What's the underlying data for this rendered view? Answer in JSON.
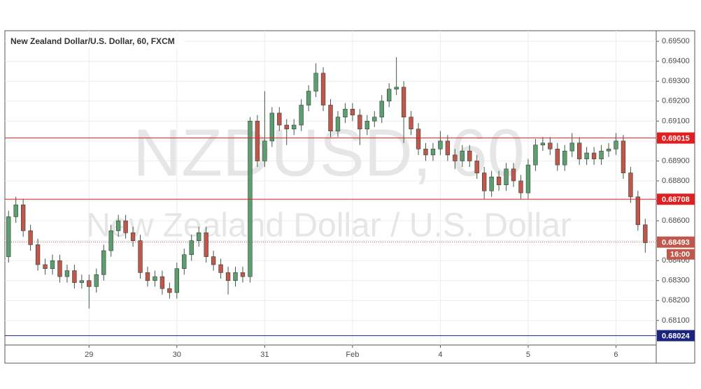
{
  "chart_data": {
    "type": "candlestick",
    "title": "New Zealand Dollar/U.S. Dollar, 60, FXCM",
    "watermark": "NZDUSD, 60",
    "watermark_subtitle": "New Zealand Dollar / U.S. Dollar",
    "x": [
      0,
      1,
      2,
      3,
      4,
      5,
      6,
      7,
      8,
      9,
      10,
      11,
      12,
      13,
      14,
      15,
      16,
      17,
      18,
      19,
      20,
      21,
      22,
      23,
      24,
      25,
      26,
      27,
      28,
      29,
      30,
      31,
      32,
      33,
      34,
      35,
      36,
      37,
      38,
      39,
      40,
      41,
      42,
      43,
      44,
      45,
      46,
      47,
      48,
      49,
      50,
      51,
      52,
      53,
      54,
      55,
      56,
      57,
      58,
      59,
      60,
      61,
      62,
      63,
      64,
      65,
      66,
      67,
      68,
      69,
      70,
      71,
      72,
      73,
      74,
      75,
      76,
      77,
      78,
      79,
      80,
      81,
      82,
      83,
      84,
      85,
      86,
      87
    ],
    "open": [
      0.6842,
      0.6862,
      0.6868,
      0.6855,
      0.6848,
      0.6838,
      0.6836,
      0.684,
      0.6832,
      0.6835,
      0.6829,
      0.683,
      0.6827,
      0.6833,
      0.6845,
      0.6855,
      0.686,
      0.6854,
      0.685,
      0.6834,
      0.683,
      0.6832,
      0.6826,
      0.6824,
      0.6836,
      0.6843,
      0.685,
      0.6854,
      0.6842,
      0.6838,
      0.6834,
      0.683,
      0.6834,
      0.6832,
      0.691,
      0.689,
      0.69,
      0.6914,
      0.6908,
      0.6906,
      0.6908,
      0.6918,
      0.6925,
      0.6934,
      0.6918,
      0.6905,
      0.6912,
      0.6916,
      0.6913,
      0.6906,
      0.691,
      0.6912,
      0.692,
      0.6926,
      0.6927,
      0.6912,
      0.6906,
      0.6896,
      0.6893,
      0.6896,
      0.69,
      0.6893,
      0.689,
      0.6895,
      0.689,
      0.6884,
      0.6875,
      0.6882,
      0.6878,
      0.6886,
      0.688,
      0.6874,
      0.6888,
      0.6898,
      0.6899,
      0.6896,
      0.6888,
      0.6895,
      0.6899,
      0.6891,
      0.6894,
      0.6891,
      0.6895,
      0.6896,
      0.69,
      0.6884,
      0.6872,
      0.6858
    ],
    "high": [
      0.6865,
      0.6872,
      0.6871,
      0.6858,
      0.6851,
      0.6841,
      0.6843,
      0.6843,
      0.6838,
      0.6838,
      0.6833,
      0.6833,
      0.6836,
      0.6848,
      0.6858,
      0.6863,
      0.6863,
      0.6857,
      0.6853,
      0.6837,
      0.6835,
      0.6835,
      0.6829,
      0.6839,
      0.6846,
      0.6853,
      0.6857,
      0.6857,
      0.6845,
      0.6841,
      0.6837,
      0.6837,
      0.6837,
      0.6912,
      0.6913,
      0.6925,
      0.6917,
      0.6917,
      0.6911,
      0.6911,
      0.6921,
      0.6928,
      0.6939,
      0.6937,
      0.6921,
      0.6915,
      0.6919,
      0.6919,
      0.6916,
      0.6913,
      0.6915,
      0.6923,
      0.6929,
      0.6942,
      0.693,
      0.6915,
      0.6909,
      0.6899,
      0.6899,
      0.6905,
      0.6903,
      0.6896,
      0.6898,
      0.6898,
      0.6893,
      0.6887,
      0.6885,
      0.6885,
      0.6889,
      0.6889,
      0.6883,
      0.6891,
      0.6901,
      0.6902,
      0.6902,
      0.6899,
      0.6898,
      0.6904,
      0.6902,
      0.6897,
      0.6897,
      0.6898,
      0.6899,
      0.6904,
      0.6903,
      0.6887,
      0.6875,
      0.6861
    ],
    "low": [
      0.6839,
      0.6859,
      0.6852,
      0.6845,
      0.6835,
      0.6833,
      0.6833,
      0.6829,
      0.6829,
      0.6826,
      0.6826,
      0.6816,
      0.6824,
      0.683,
      0.6842,
      0.6852,
      0.6851,
      0.6847,
      0.6831,
      0.6827,
      0.6827,
      0.6823,
      0.6821,
      0.6821,
      0.6833,
      0.684,
      0.6847,
      0.6839,
      0.6835,
      0.6831,
      0.6823,
      0.6827,
      0.6829,
      0.6829,
      0.6887,
      0.6887,
      0.6897,
      0.6905,
      0.6898,
      0.6903,
      0.6905,
      0.6915,
      0.6922,
      0.6915,
      0.6902,
      0.6902,
      0.6909,
      0.691,
      0.6898,
      0.6903,
      0.6907,
      0.6909,
      0.6917,
      0.6923,
      0.6899,
      0.6903,
      0.6893,
      0.689,
      0.689,
      0.6893,
      0.689,
      0.6886,
      0.6887,
      0.6887,
      0.6881,
      0.6871,
      0.6872,
      0.6875,
      0.6875,
      0.6877,
      0.6871,
      0.6871,
      0.6885,
      0.6895,
      0.6893,
      0.6885,
      0.6885,
      0.6892,
      0.6888,
      0.6888,
      0.6888,
      0.6888,
      0.6892,
      0.6893,
      0.6881,
      0.6869,
      0.6855,
      0.6844
    ],
    "close": [
      0.6862,
      0.6868,
      0.6855,
      0.6848,
      0.6838,
      0.6836,
      0.684,
      0.6832,
      0.6835,
      0.6829,
      0.683,
      0.6827,
      0.6833,
      0.6845,
      0.6855,
      0.686,
      0.6854,
      0.685,
      0.6834,
      0.683,
      0.6832,
      0.6826,
      0.6824,
      0.6836,
      0.6843,
      0.685,
      0.6854,
      0.6842,
      0.6838,
      0.6834,
      0.683,
      0.6834,
      0.6832,
      0.691,
      0.689,
      0.69,
      0.6914,
      0.6908,
      0.6906,
      0.6908,
      0.6918,
      0.6925,
      0.6934,
      0.6918,
      0.6905,
      0.6912,
      0.6916,
      0.6913,
      0.6906,
      0.691,
      0.6912,
      0.692,
      0.6926,
      0.6927,
      0.6912,
      0.6906,
      0.6896,
      0.6893,
      0.6896,
      0.69,
      0.6893,
      0.689,
      0.6895,
      0.689,
      0.6884,
      0.6875,
      0.6882,
      0.6878,
      0.6886,
      0.688,
      0.6874,
      0.6888,
      0.6898,
      0.6899,
      0.6896,
      0.6888,
      0.6895,
      0.6899,
      0.6891,
      0.6894,
      0.6891,
      0.6895,
      0.6896,
      0.69,
      0.6884,
      0.6872,
      0.6858,
      0.6849
    ],
    "up_color": "#5c9e6f",
    "down_color": "#c0574a",
    "xlim": [
      -0.5,
      88.5
    ],
    "xticks": [
      {
        "value": 11,
        "label": "29"
      },
      {
        "value": 23,
        "label": "30"
      },
      {
        "value": 35,
        "label": "31"
      },
      {
        "value": 47,
        "label": "Feb"
      },
      {
        "value": 59,
        "label": "4"
      },
      {
        "value": 71,
        "label": "5"
      },
      {
        "value": 83,
        "label": "6"
      }
    ],
    "ylim": [
      0.67886,
      0.69553
    ],
    "yticks": [
      {
        "value": 0.681,
        "label": "0.68100"
      },
      {
        "value": 0.682,
        "label": "0.68200"
      },
      {
        "value": 0.683,
        "label": "0.68300"
      },
      {
        "value": 0.684,
        "label": "0.68400"
      },
      {
        "value": 0.685,
        "label": "0.68500"
      },
      {
        "value": 0.686,
        "label": "0.68600"
      },
      {
        "value": 0.687,
        "label": "0.68700"
      },
      {
        "value": 0.688,
        "label": "0.68800"
      },
      {
        "value": 0.689,
        "label": "0.68900"
      },
      {
        "value": 0.69,
        "label": "0.69000"
      },
      {
        "value": 0.691,
        "label": "0.69100"
      },
      {
        "value": 0.692,
        "label": "0.69200"
      },
      {
        "value": 0.693,
        "label": "0.69300"
      },
      {
        "value": 0.694,
        "label": "0.69400"
      },
      {
        "value": 0.695,
        "label": "0.69500"
      }
    ],
    "grid": true,
    "levels": [
      {
        "value": 0.69015,
        "color": "#e02020"
      },
      {
        "value": 0.68708,
        "color": "#e02020"
      },
      {
        "value": 0.68024,
        "color": "#1a237e"
      }
    ],
    "last": {
      "value": 0.68493,
      "time": "16:00",
      "color": "#c0574a"
    }
  }
}
